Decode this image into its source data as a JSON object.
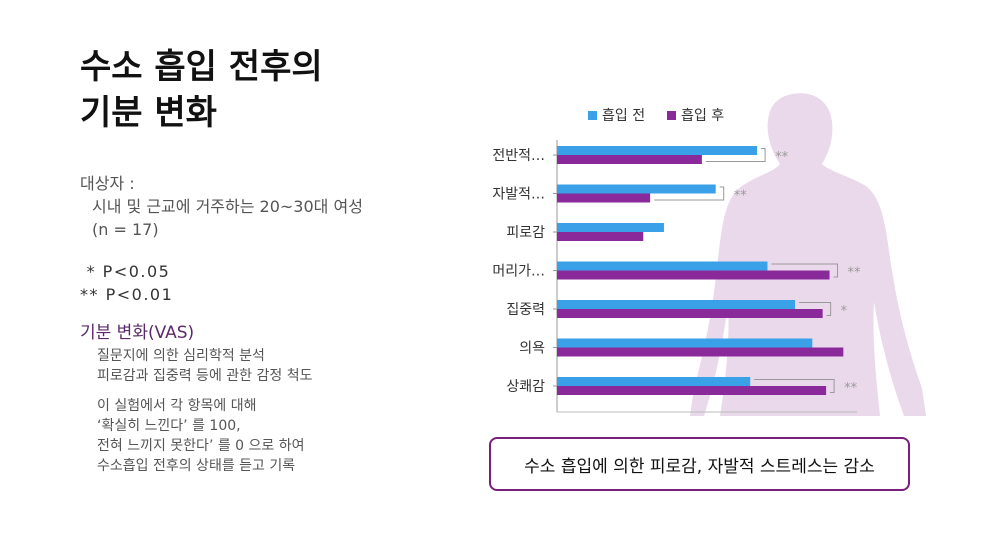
{
  "title": {
    "line1": "수소 흡입 전후의",
    "line2": "기분 변화"
  },
  "subject": {
    "label": "대상자 :",
    "line1": "시내 및 근교에 거주하는 20~30대 여성",
    "line2": "(n = 17)"
  },
  "pvalues": {
    "p1": " * P<0.05",
    "p2": "** P<0.01"
  },
  "section": {
    "heading": "기분 변화(VAS)",
    "notes1": [
      "질문지에 의한 심리학적 분석",
      "피로감과 집중력 등에 관한 감정 척도"
    ],
    "notes2": [
      "이 실험에서 각 항목에 대해",
      "‘확실히 느낀다’ 를 100,",
      "전혀 느끼지 못한다’ 를 0 으로 하여",
      "수소흡입 전후의 상태를 듣고 기록"
    ]
  },
  "conclusion": "수소 흡입에 의한 피로감, 자발적 스트레스는 감소",
  "colors": {
    "before": "#3aa0e8",
    "after": "#8a2a9a",
    "silhouette": "#ead9ea"
  },
  "chart_data": {
    "type": "bar",
    "orientation": "horizontal",
    "categories": [
      "전반적…",
      "자발적…",
      "피로감",
      "머리가…",
      "집중력",
      "의욕",
      "상쾌감"
    ],
    "series": [
      {
        "name": "흡입 전",
        "values": [
          58,
          46,
          31,
          61,
          69,
          74,
          56
        ]
      },
      {
        "name": "흡입 후",
        "values": [
          42,
          27,
          25,
          79,
          77,
          83,
          78
        ]
      }
    ],
    "significance": [
      "**",
      "**",
      "",
      "**",
      "*",
      "",
      "**"
    ],
    "legend_position": "top",
    "xlim": [
      0,
      100
    ]
  }
}
